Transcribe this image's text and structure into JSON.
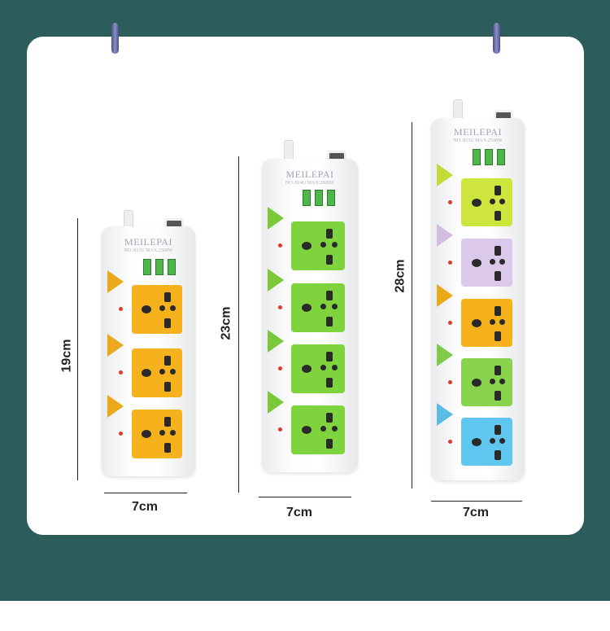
{
  "brand": "MEILEPAI",
  "products": [
    {
      "model": "NO.:813U MAX:2500W",
      "height_label": "19cm",
      "width_label": "7cm",
      "socket_colors": [
        "#f5b21c",
        "#f5b21c",
        "#f5b21c"
      ]
    },
    {
      "model": "NO.:814U MAX:2500W",
      "height_label": "23cm",
      "width_label": "7cm",
      "socket_colors": [
        "#7fd33c",
        "#7fd33c",
        "#7fd33c",
        "#7fd33c"
      ]
    },
    {
      "model": "NO.:815U MAX:2500W",
      "height_label": "28cm",
      "width_label": "7cm",
      "socket_colors": [
        "#cde53c",
        "#dcc8ea",
        "#f6b21a",
        "#88d44c",
        "#5ec6ef"
      ]
    }
  ],
  "colors": {
    "background": "#2c5d5a",
    "card": "#ffffff",
    "hook": "#5a5f9a"
  }
}
